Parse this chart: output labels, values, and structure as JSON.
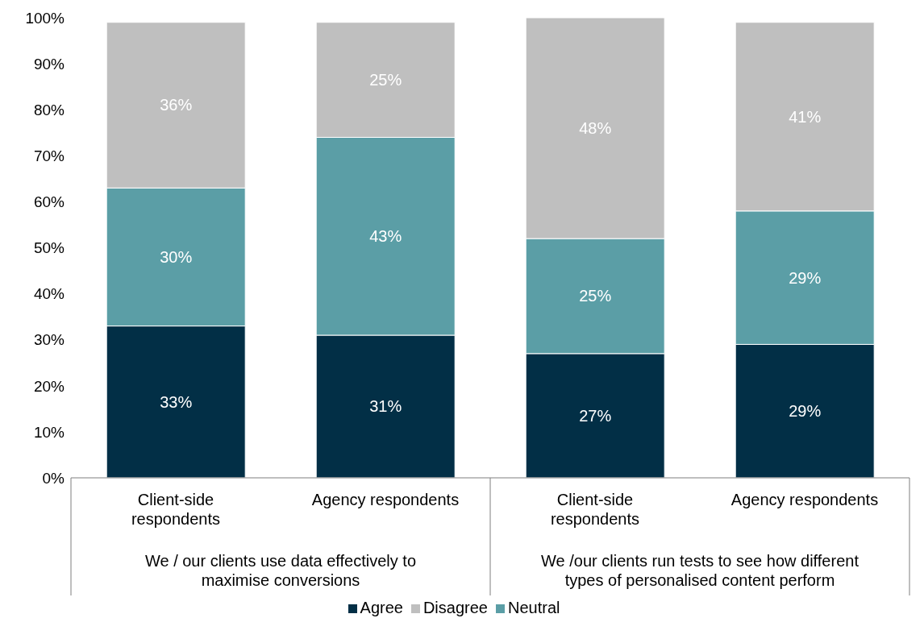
{
  "chart_data": {
    "type": "bar",
    "stacked": true,
    "categories": [
      "Client-side respondents",
      "Agency respondents",
      "Client-side respondents",
      "Agency respondents"
    ],
    "annotations": [
      "We / our clients use data effectively to maximise conversions",
      "We /our clients run tests to see how different types of personalised content perform"
    ],
    "series": [
      {
        "name": "Agree",
        "color": "#022f46",
        "values": [
          33,
          31,
          27,
          29
        ],
        "value_labels": [
          "33%",
          "31%",
          "27%",
          "29%"
        ]
      },
      {
        "name": "Neutral",
        "color": "#5b9ea6",
        "values": [
          30,
          43,
          25,
          29
        ],
        "value_labels": [
          "30%",
          "43%",
          "25%",
          "29%"
        ]
      },
      {
        "name": "Disagree",
        "color": "#bfbfbf",
        "values": [
          36,
          25,
          48,
          41
        ],
        "value_labels": [
          "36%",
          "25%",
          "48%",
          "41%"
        ]
      }
    ],
    "ylim": [
      0,
      100
    ],
    "yticks": [
      {
        "value": 0,
        "label": "0%"
      },
      {
        "value": 10,
        "label": "10%"
      },
      {
        "value": 20,
        "label": "20%"
      },
      {
        "value": 30,
        "label": "30%"
      },
      {
        "value": 40,
        "label": "40%"
      },
      {
        "value": 50,
        "label": "50%"
      },
      {
        "value": 60,
        "label": "60%"
      },
      {
        "value": 70,
        "label": "70%"
      },
      {
        "value": 80,
        "label": "80%"
      },
      {
        "value": 90,
        "label": "90%"
      },
      {
        "value": 100,
        "label": "100%"
      }
    ],
    "grid": false,
    "legend": "bottom"
  }
}
